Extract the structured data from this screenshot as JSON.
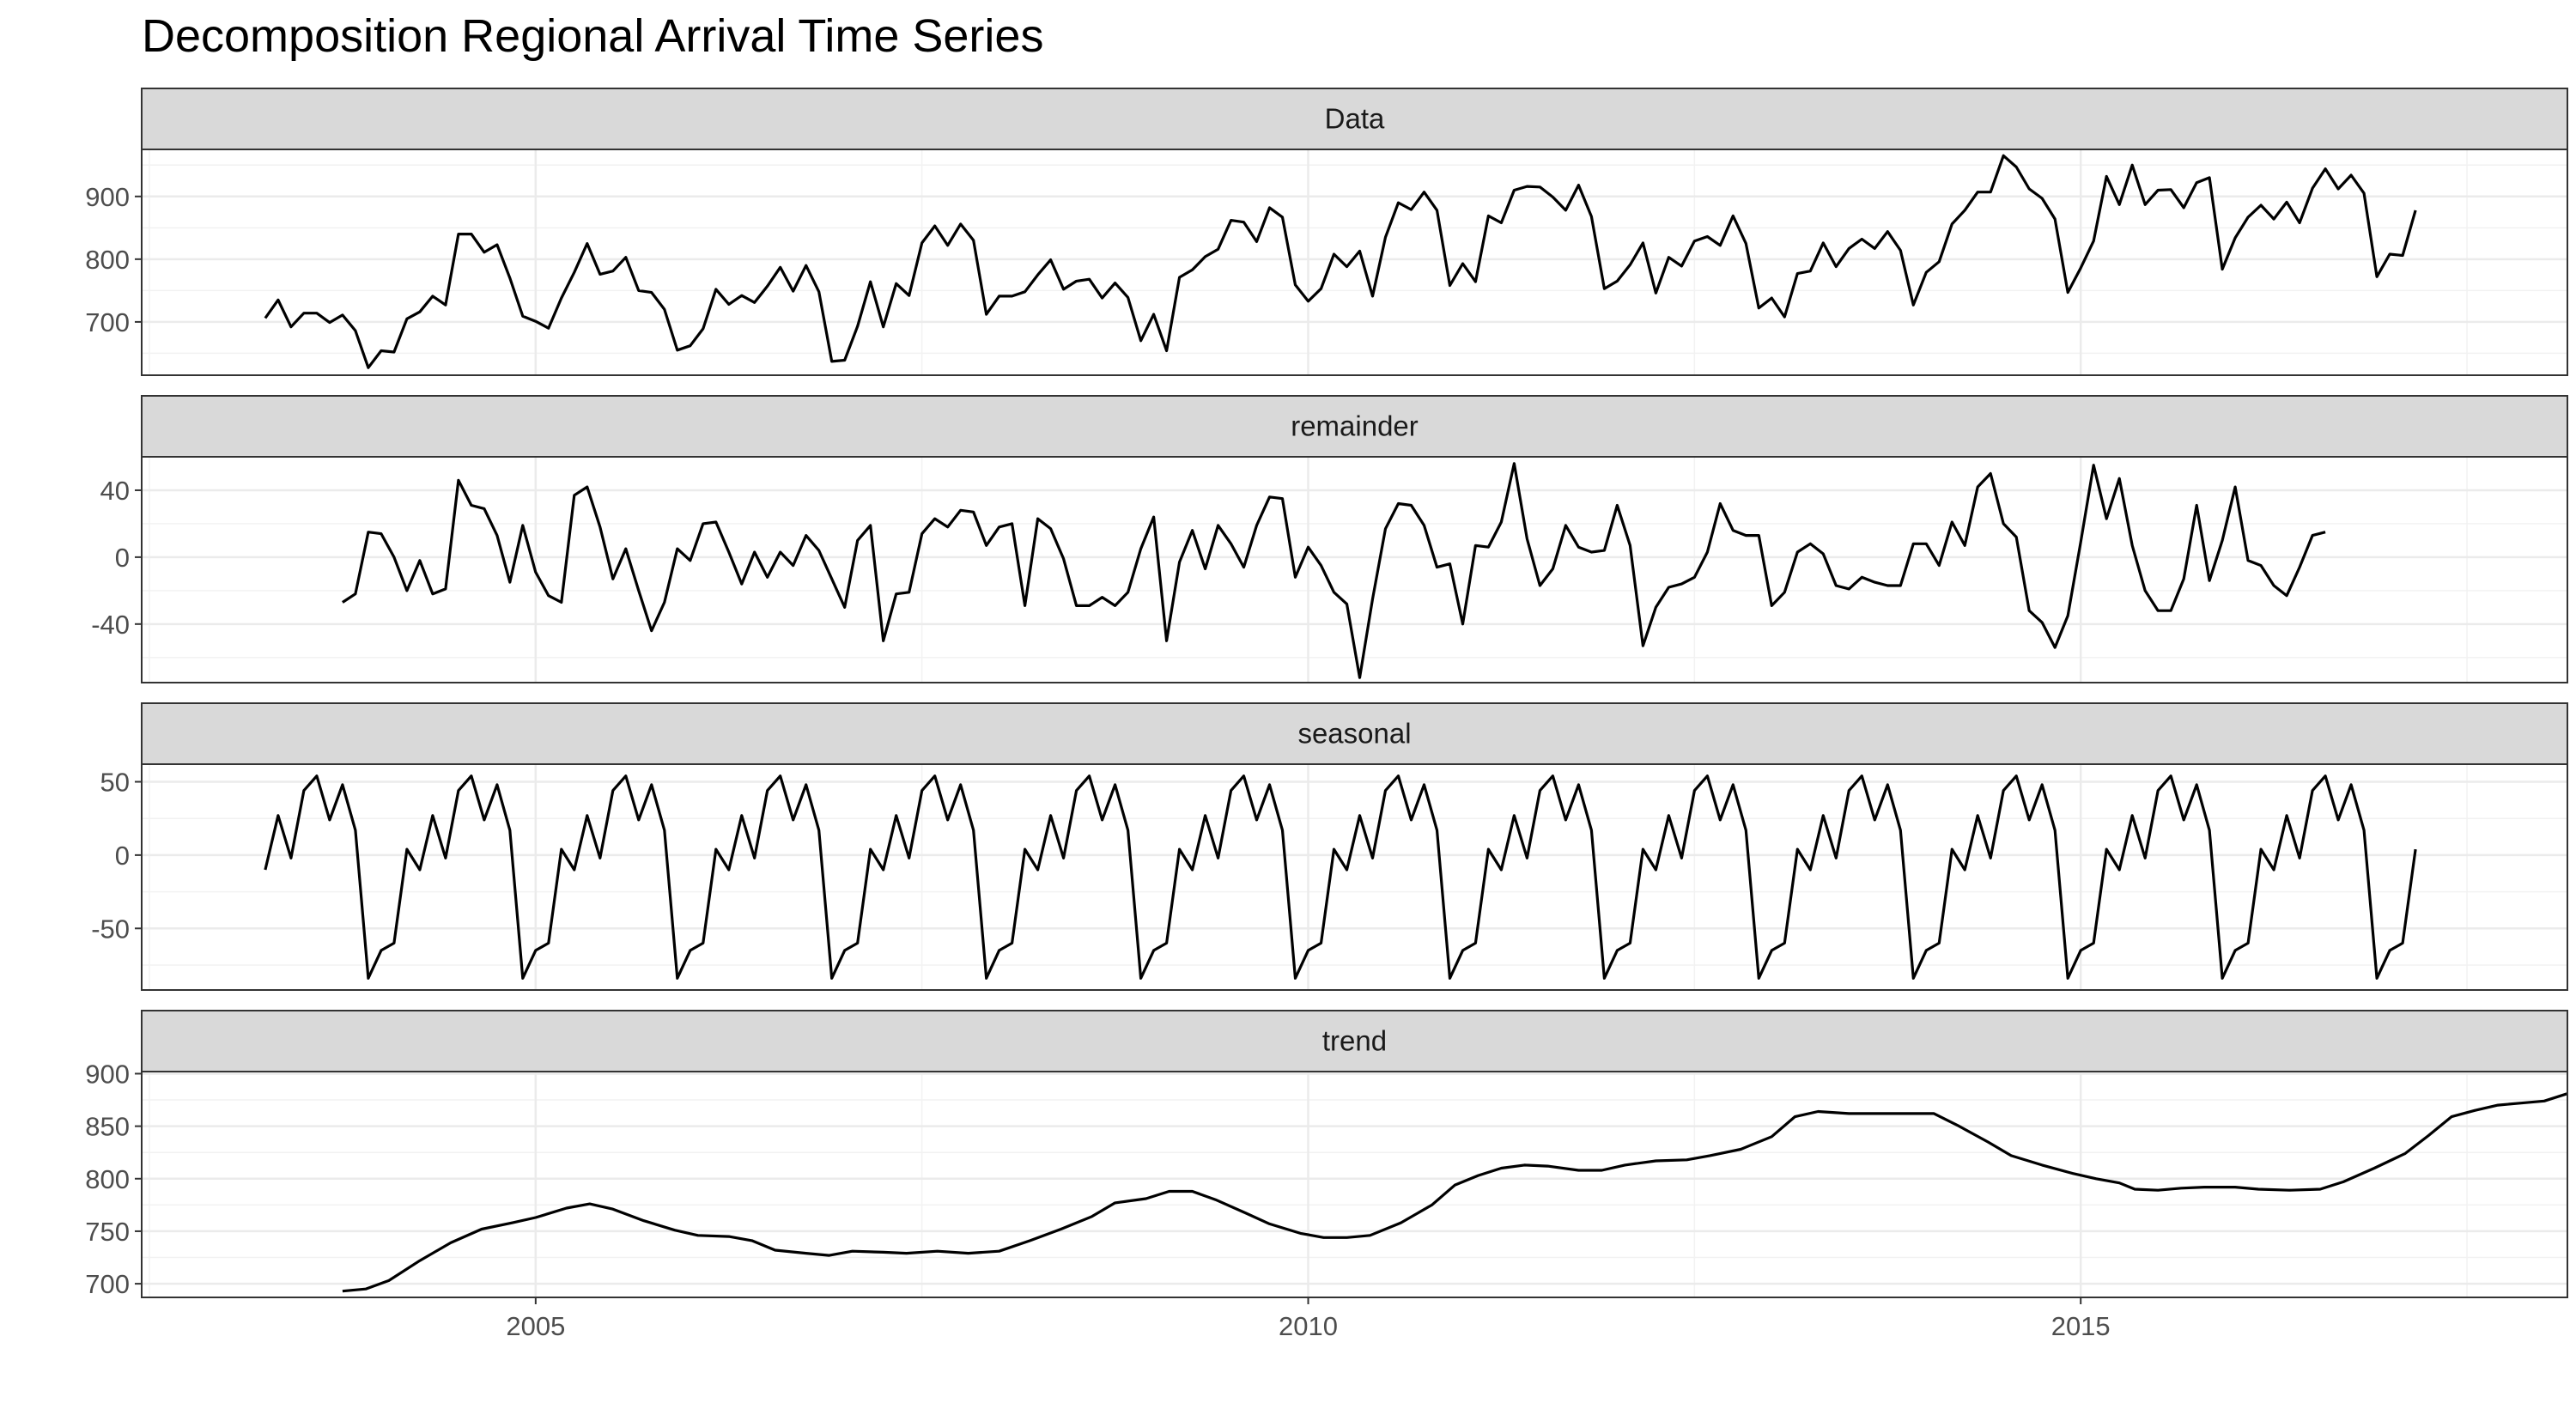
{
  "chart_data": {
    "type": "line",
    "title": "Decomposition Regional Arrival Time Series",
    "x_ticks": [
      2005,
      2010,
      2015
    ],
    "x_range": [
      2002.45,
      2018.15
    ],
    "grid": true,
    "facets": [
      {
        "name": "Data",
        "ylim": [
          615,
          975
        ],
        "y_ticks": [
          700,
          800,
          900
        ],
        "x_start": 2003.25,
        "step": 0.0833333,
        "values": [
          706,
          735,
          692,
          714,
          714,
          699,
          711,
          686,
          627,
          654,
          652,
          705,
          716,
          741,
          727,
          840,
          840,
          811,
          823,
          770,
          709,
          701,
          690,
          738,
          779,
          825,
          776,
          781,
          803,
          750,
          747,
          720,
          655,
          662,
          689,
          752,
          728,
          742,
          731,
          757,
          787,
          749,
          790,
          748,
          637,
          639,
          693,
          764,
          692,
          761,
          742,
          826,
          853,
          822,
          856,
          830,
          712,
          741,
          741,
          748,
          775,
          799,
          752,
          765,
          768,
          738,
          762,
          739,
          670,
          712,
          654,
          771,
          783,
          804,
          816,
          862,
          859,
          828,
          882,
          867,
          759,
          733,
          753,
          808,
          788,
          813,
          741,
          835,
          890,
          879,
          907,
          878,
          758,
          793,
          764,
          869,
          858,
          910,
          916,
          915,
          899,
          878,
          918,
          868,
          753,
          765,
          791,
          826,
          746,
          803,
          789,
          829,
          836,
          822,
          869,
          825,
          722,
          738,
          708,
          777,
          781,
          826,
          788,
          817,
          832,
          817,
          844,
          814,
          727,
          779,
          796,
          856,
          878,
          907,
          907,
          965,
          947,
          912,
          897,
          864,
          747,
          786,
          829,
          932,
          887,
          950,
          887,
          910,
          911,
          882,
          922,
          930,
          784,
          834,
          867,
          886,
          864,
          891,
          858,
          913,
          944,
          912,
          934,
          905,
          772,
          808,
          806,
          878
        ]
      },
      {
        "name": "remainder",
        "ylim": [
          -75,
          60
        ],
        "y_ticks": [
          -40,
          0,
          40
        ],
        "x_start": 2003.75,
        "step": 0.0833333,
        "values": [
          -27,
          -22,
          15,
          14,
          0,
          -20,
          -2,
          -22,
          -19,
          46,
          31,
          29,
          13,
          -15,
          19,
          -9,
          -23,
          -27,
          37,
          42,
          18,
          -13,
          5,
          -20,
          -44,
          -27,
          5,
          -2,
          20,
          21,
          3,
          -16,
          3,
          -12,
          3,
          -5,
          13,
          4,
          -13,
          -30,
          10,
          19,
          -50,
          -22,
          -21,
          14,
          23,
          18,
          28,
          27,
          7,
          18,
          20,
          -29,
          23,
          17,
          -1,
          -29,
          -29,
          -24,
          -29,
          -21,
          5,
          24,
          -50,
          -3,
          16,
          -7,
          19,
          8,
          -6,
          19,
          36,
          35,
          -12,
          6,
          -5,
          -21,
          -28,
          -72,
          -25,
          17,
          32,
          31,
          19,
          -6,
          -4,
          -40,
          7,
          6,
          21,
          56,
          11,
          -17,
          -7,
          19,
          6,
          3,
          4,
          31,
          7,
          -53,
          -30,
          -18,
          -16,
          -12,
          3,
          32,
          16,
          13,
          13,
          -29,
          -21,
          3,
          8,
          2,
          -17,
          -19,
          -12,
          -15,
          -17,
          -17,
          8,
          8,
          -5,
          21,
          7,
          42,
          50,
          20,
          12,
          -32,
          -39,
          -54,
          -35,
          9,
          55,
          23,
          47,
          7,
          -20,
          -32,
          -32,
          -13,
          31,
          -14,
          10,
          42,
          -2,
          -5,
          -17,
          -23,
          -6,
          13,
          15
        ]
      },
      {
        "name": "seasonal",
        "ylim": [
          -92,
          62
        ],
        "y_ticks": [
          -50,
          0,
          50
        ],
        "x_start": 2003.25,
        "step": 0.0833333,
        "values": [
          -10,
          27,
          -2,
          44,
          54,
          24,
          48,
          17,
          -84,
          -65,
          -60,
          4
        ],
        "cycles": 14
      },
      {
        "name": "trend",
        "ylim": [
          687,
          902
        ],
        "y_ticks": [
          700,
          750,
          800,
          850,
          900
        ],
        "points": [
          [
            2003.75,
            693
          ],
          [
            2003.9,
            695
          ],
          [
            2004.05,
            703
          ],
          [
            2004.25,
            722
          ],
          [
            2004.45,
            739
          ],
          [
            2004.65,
            752
          ],
          [
            2004.85,
            758
          ],
          [
            2005.0,
            763
          ],
          [
            2005.2,
            772
          ],
          [
            2005.35,
            776
          ],
          [
            2005.5,
            771
          ],
          [
            2005.7,
            760
          ],
          [
            2005.9,
            751
          ],
          [
            2006.05,
            746
          ],
          [
            2006.25,
            745
          ],
          [
            2006.4,
            741
          ],
          [
            2006.55,
            732
          ],
          [
            2006.75,
            729
          ],
          [
            2006.9,
            727
          ],
          [
            2007.05,
            731
          ],
          [
            2007.25,
            730
          ],
          [
            2007.4,
            729
          ],
          [
            2007.6,
            731
          ],
          [
            2007.8,
            729
          ],
          [
            2008.0,
            731
          ],
          [
            2008.2,
            741
          ],
          [
            2008.4,
            752
          ],
          [
            2008.6,
            764
          ],
          [
            2008.75,
            777
          ],
          [
            2008.95,
            781
          ],
          [
            2009.1,
            788
          ],
          [
            2009.25,
            788
          ],
          [
            2009.4,
            780
          ],
          [
            2009.6,
            767
          ],
          [
            2009.75,
            757
          ],
          [
            2009.95,
            748
          ],
          [
            2010.1,
            744
          ],
          [
            2010.25,
            744
          ],
          [
            2010.4,
            746
          ],
          [
            2010.6,
            758
          ],
          [
            2010.8,
            775
          ],
          [
            2010.95,
            794
          ],
          [
            2011.1,
            803
          ],
          [
            2011.25,
            810
          ],
          [
            2011.4,
            813
          ],
          [
            2011.55,
            812
          ],
          [
            2011.75,
            808
          ],
          [
            2011.9,
            808
          ],
          [
            2012.05,
            813
          ],
          [
            2012.25,
            817
          ],
          [
            2012.45,
            818
          ],
          [
            2012.6,
            822
          ],
          [
            2012.8,
            828
          ],
          [
            2013.0,
            840
          ],
          [
            2013.15,
            859
          ],
          [
            2013.3,
            864
          ],
          [
            2013.5,
            862
          ],
          [
            2013.7,
            862
          ],
          [
            2013.9,
            862
          ],
          [
            2014.05,
            862
          ],
          [
            2014.2,
            851
          ],
          [
            2014.4,
            835
          ],
          [
            2014.55,
            822
          ],
          [
            2014.75,
            813
          ],
          [
            2014.95,
            805
          ],
          [
            2015.1,
            800
          ],
          [
            2015.25,
            796
          ],
          [
            2015.35,
            790
          ],
          [
            2015.5,
            789
          ],
          [
            2015.65,
            791
          ],
          [
            2015.8,
            792
          ],
          [
            2016.0,
            792
          ],
          [
            2016.15,
            790
          ],
          [
            2016.35,
            789
          ],
          [
            2016.55,
            790
          ],
          [
            2016.7,
            797
          ],
          [
            2016.9,
            810
          ],
          [
            2017.1,
            824
          ],
          [
            2017.25,
            841
          ],
          [
            2017.4,
            859
          ],
          [
            2017.55,
            865
          ],
          [
            2017.7,
            870
          ],
          [
            2017.85,
            872
          ],
          [
            2018.0,
            874
          ],
          [
            2018.15,
            881
          ]
        ]
      }
    ]
  }
}
